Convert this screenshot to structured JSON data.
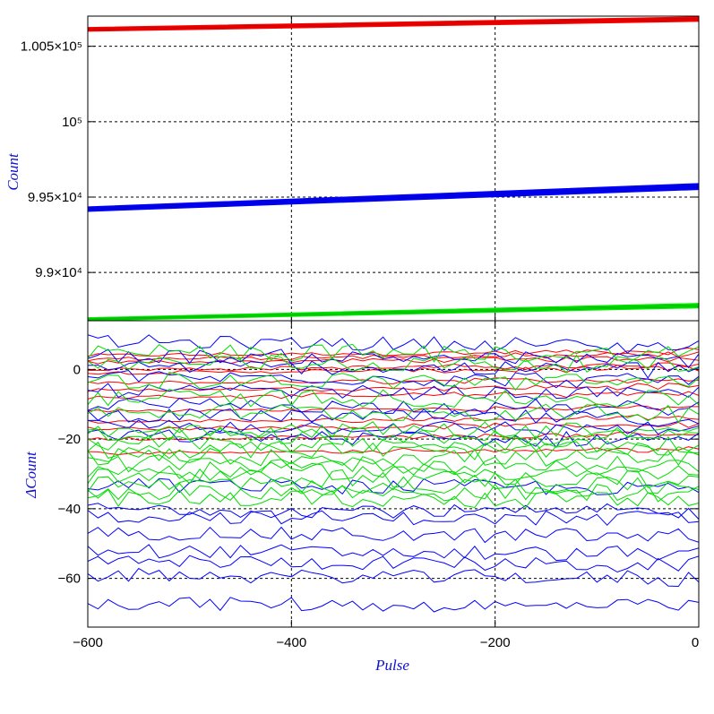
{
  "chart_data": [
    {
      "type": "line",
      "panel": "top",
      "ylabel": "Count",
      "xlim": [
        -600,
        0
      ],
      "ylim": [
        98680,
        100700
      ],
      "grid": true,
      "xticks": [
        -600,
        -400,
        -200,
        0
      ],
      "yticks": [
        {
          "value": 99000,
          "label": "9.9×10⁴"
        },
        {
          "value": 99500,
          "label": "9.95×10⁴"
        },
        {
          "value": 100000,
          "label": "10⁵"
        },
        {
          "value": 100500,
          "label": "1.005×10⁵"
        }
      ],
      "series": [
        {
          "color": "#ff0000",
          "band": {
            "x": [
              -600,
              0
            ],
            "y_low": [
              100600,
              100665
            ],
            "y_high": [
              100625,
              100695
            ]
          }
        },
        {
          "color": "#0000ff",
          "band": {
            "x": [
              -600,
              0
            ],
            "y_low": [
              99405,
              99550
            ],
            "y_high": [
              99435,
              99590
            ]
          }
        },
        {
          "color": "#00ee00",
          "band": {
            "x": [
              -600,
              0
            ],
            "y_low": [
              98680,
              98765
            ],
            "y_high": [
              98700,
              98795
            ]
          }
        }
      ]
    },
    {
      "type": "line",
      "panel": "bottom",
      "xlabel": "Pulse",
      "ylabel": "ΔCount",
      "xlim": [
        -600,
        0
      ],
      "ylim": [
        -74,
        14
      ],
      "grid": true,
      "xticks": [
        -600,
        -400,
        -200,
        0
      ],
      "yticks": [
        {
          "value": 0,
          "label": "0"
        },
        {
          "value": -20,
          "label": "−20"
        },
        {
          "value": -40,
          "label": "−40"
        },
        {
          "value": -60,
          "label": "−60"
        }
      ],
      "groups": [
        {
          "color": "#ff0000",
          "levels": [
            4,
            3,
            2,
            0,
            -1,
            -4,
            -6,
            -8,
            -12,
            -15,
            -17,
            -20,
            -24
          ],
          "trend": 2,
          "noise": 0.5
        },
        {
          "color": "#0000ff",
          "levels": [
            8,
            4,
            1,
            -2,
            -6,
            -10,
            -13,
            -16,
            -19,
            -33,
            -40,
            -42,
            -47,
            -52,
            -55,
            -59,
            -67
          ],
          "trend": -2,
          "noise": 2
        },
        {
          "color": "#00dd00",
          "levels": [
            5,
            2,
            -3,
            -8,
            -12,
            -17,
            -19,
            -21,
            -23,
            -25,
            -27,
            -29,
            -31,
            -33,
            -35,
            -37
          ],
          "trend": -1,
          "noise": 2.5
        }
      ]
    }
  ]
}
